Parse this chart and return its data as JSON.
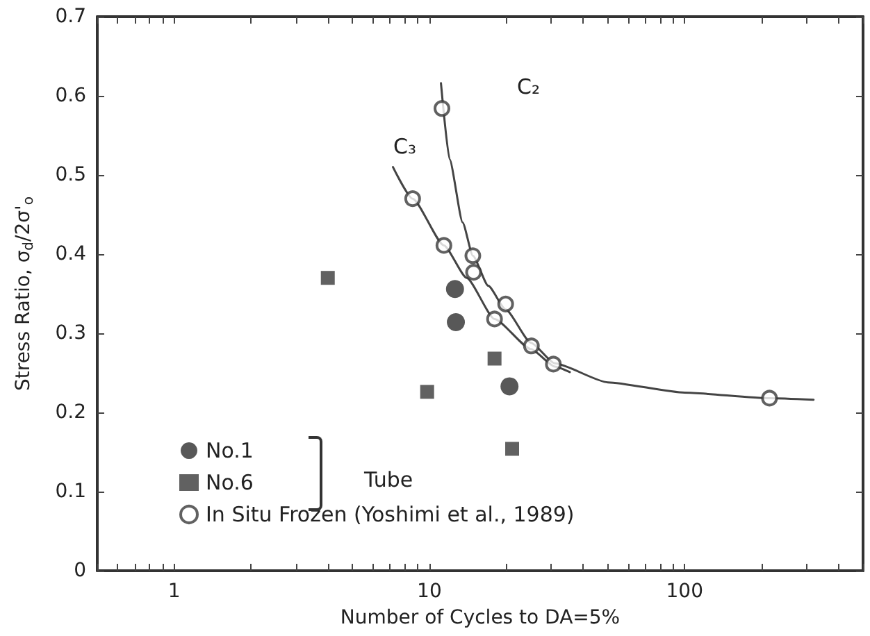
{
  "chart_data": {
    "type": "scatter",
    "xlabel": "Number of Cycles to DA=5%",
    "ylabel": "Stress Ratio, σ$_{d}$/2σ'$_{o}$",
    "log": "x",
    "xlim": [
      0.5,
      500
    ],
    "ylim": [
      0,
      0.7
    ],
    "xticks": [
      {
        "value": 0.5,
        "label": null
      },
      {
        "value": 0.6,
        "label": null
      },
      {
        "value": 0.7,
        "label": null
      },
      {
        "value": 0.8,
        "label": null
      },
      {
        "value": 0.9,
        "label": null
      },
      1,
      {
        "value": 2,
        "label": null
      },
      {
        "value": 3,
        "label": null
      },
      {
        "value": 4,
        "label": null
      },
      {
        "value": 5,
        "label": null
      },
      {
        "value": 6,
        "label": null
      },
      {
        "value": 7,
        "label": null
      },
      {
        "value": 8,
        "label": null
      },
      {
        "value": 9,
        "label": null
      },
      10,
      {
        "value": 20,
        "label": null
      },
      {
        "value": 30,
        "label": null
      },
      {
        "value": 40,
        "label": null
      },
      {
        "value": 50,
        "label": null
      },
      {
        "value": 60,
        "label": null
      },
      {
        "value": 70,
        "label": null
      },
      {
        "value": 80,
        "label": null
      },
      {
        "value": 90,
        "label": null
      },
      100,
      {
        "value": 200,
        "label": null
      },
      {
        "value": 300,
        "label": null
      },
      {
        "value": 400,
        "label": null
      },
      {
        "value": 500,
        "label": null
      }
    ],
    "yticks": [
      0,
      0.1,
      0.2,
      0.3,
      0.4,
      0.5,
      0.6,
      0.7
    ],
    "grid": false,
    "legend": "bottom left",
    "series": [
      {
        "name": "No.1",
        "marker": "circle",
        "color": "#2e2e2e",
        "x": [
          12.6,
          12.7,
          20.6
        ],
        "values": [
          0.356,
          0.314,
          0.233
        ]
      },
      {
        "name": "No.6",
        "marker": "square",
        "color": "#3a3a3a",
        "x": [
          4.0,
          18.0,
          9.8,
          21.1
        ],
        "values": [
          0.37,
          0.268,
          0.226,
          0.154
        ]
      },
      {
        "name": "In Situ Frozen (Yoshimi et al., 1989)",
        "color": "#3a3a3a",
        "x": [
          11.2,
          14.8,
          14.9,
          19.9,
          25.1,
          30.6,
          215,
          8.6,
          11.4,
          18.0
        ],
        "values": [
          0.584,
          0.398,
          0.377,
          0.337,
          0.284,
          0.261,
          0.218,
          0.47,
          0.411,
          0.318
        ]
      },
      {
        "type": "line",
        "marker": "none",
        "color": "#444444",
        "x": [
          11.1,
          12,
          13.5,
          14.8,
          17,
          19.9,
          25,
          31,
          50,
          100,
          215,
          320
        ],
        "values": [
          0.616,
          0.52,
          0.44,
          0.398,
          0.36,
          0.33,
          0.288,
          0.262,
          0.238,
          0.225,
          0.218,
          0.216
        ]
      },
      {
        "type": "line",
        "marker": "none",
        "color": "#444444",
        "x": [
          7.2,
          8.6,
          11.4,
          14,
          18,
          25,
          31,
          35.5
        ],
        "values": [
          0.51,
          0.47,
          0.411,
          0.37,
          0.318,
          0.28,
          0.258,
          0.251
        ]
      }
    ],
    "annotations": [
      "C₂",
      "C₃",
      "Tube"
    ]
  }
}
